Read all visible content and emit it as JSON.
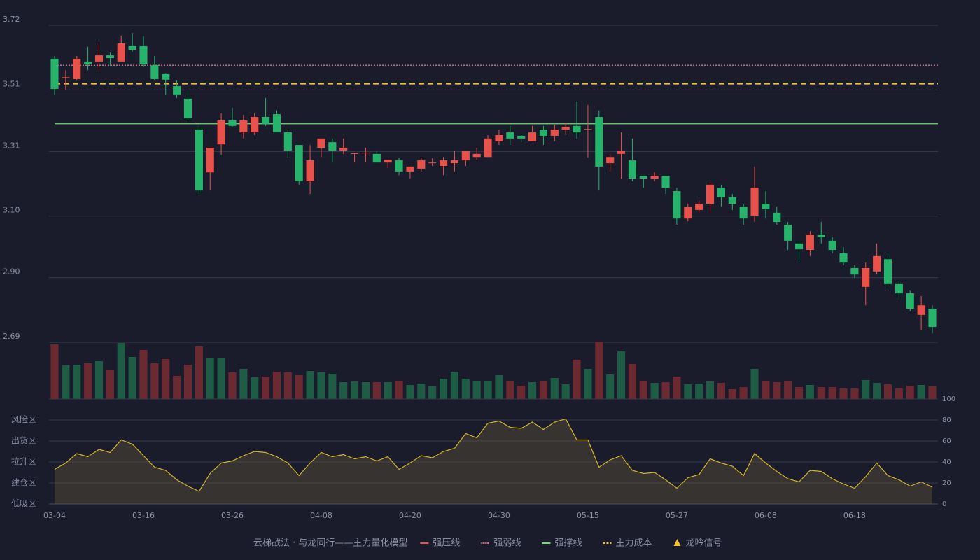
{
  "chart_data": [
    {
      "type": "candlestick",
      "categories": [
        "03-04",
        null,
        null,
        null,
        null,
        null,
        null,
        null,
        "03-16",
        null,
        null,
        null,
        null,
        null,
        null,
        null,
        "03-26",
        null,
        null,
        null,
        null,
        null,
        null,
        null,
        "04-08",
        null,
        null,
        null,
        null,
        null,
        null,
        null,
        "04-20",
        null,
        null,
        null,
        null,
        null,
        null,
        null,
        "04-30",
        null,
        null,
        null,
        null,
        null,
        null,
        null,
        "05-15",
        null,
        null,
        null,
        null,
        null,
        null,
        null,
        "05-27",
        null,
        null,
        null,
        null,
        null,
        null,
        null,
        "06-08",
        null,
        null,
        null,
        null,
        null,
        null,
        null,
        "06-18",
        null,
        null,
        null,
        null,
        null,
        null,
        null
      ],
      "open": [
        3.611,
        3.548,
        3.545,
        3.602,
        3.602,
        3.622,
        3.602,
        3.652,
        3.652,
        3.59,
        3.561,
        3.522,
        3.481,
        3.381,
        3.242,
        3.333,
        3.411,
        3.372,
        3.372,
        3.422,
        3.431,
        3.372,
        3.331,
        3.213,
        3.322,
        3.34,
        3.313,
        3.302,
        3.304,
        3.302,
        3.274,
        3.281,
        3.245,
        3.254,
        3.272,
        3.263,
        3.272,
        3.281,
        3.292,
        3.292,
        3.343,
        3.372,
        3.361,
        3.343,
        3.381,
        3.361,
        3.381,
        3.393,
        3.381,
        3.422,
        3.272,
        3.302,
        3.281,
        3.231,
        3.222,
        3.231,
        3.181,
        3.092,
        3.12,
        3.14,
        3.192,
        3.161,
        3.131,
        3.101,
        3.14,
        3.111,
        3.072,
        3.011,
        2.99,
        3.04,
        3.02,
        2.979,
        2.931,
        2.87,
        2.92,
        2.96,
        2.879,
        2.849,
        2.779,
        2.799
      ],
      "high": [
        3.62,
        3.574,
        3.62,
        3.65,
        3.661,
        3.631,
        3.686,
        3.695,
        3.684,
        3.62,
        3.563,
        3.54,
        3.511,
        3.393,
        3.322,
        3.434,
        3.452,
        3.429,
        3.434,
        3.484,
        3.443,
        3.381,
        3.331,
        3.331,
        3.352,
        3.352,
        3.352,
        3.304,
        3.322,
        3.311,
        3.283,
        3.29,
        3.261,
        3.29,
        3.288,
        3.292,
        3.311,
        3.311,
        3.322,
        3.363,
        3.381,
        3.393,
        3.363,
        3.393,
        3.393,
        3.397,
        3.402,
        3.472,
        3.461,
        3.443,
        3.302,
        3.372,
        3.352,
        3.231,
        3.242,
        3.231,
        3.192,
        3.14,
        3.151,
        3.211,
        3.202,
        3.172,
        3.14,
        3.261,
        3.181,
        3.131,
        3.081,
        3.02,
        3.051,
        3.081,
        3.031,
        2.999,
        2.94,
        2.949,
        3.011,
        2.979,
        2.89,
        2.858,
        2.84,
        2.81
      ],
      "low": [
        3.493,
        3.511,
        3.54,
        3.574,
        3.574,
        3.586,
        3.602,
        3.634,
        3.584,
        3.54,
        3.493,
        3.484,
        3.411,
        3.172,
        3.183,
        3.299,
        3.39,
        3.352,
        3.363,
        3.393,
        3.372,
        3.29,
        3.202,
        3.172,
        3.292,
        3.274,
        3.302,
        3.274,
        3.274,
        3.274,
        3.256,
        3.233,
        3.222,
        3.245,
        3.263,
        3.233,
        3.245,
        3.263,
        3.283,
        3.292,
        3.331,
        3.331,
        3.34,
        3.343,
        3.331,
        3.343,
        3.363,
        3.352,
        3.29,
        3.183,
        3.245,
        3.222,
        3.213,
        3.192,
        3.213,
        3.172,
        3.072,
        3.083,
        3.111,
        3.111,
        3.131,
        3.12,
        3.072,
        3.081,
        3.092,
        3.072,
        2.99,
        2.949,
        2.97,
        3.011,
        2.979,
        2.94,
        2.899,
        2.81,
        2.91,
        2.87,
        2.829,
        2.79,
        2.729,
        2.719
      ],
      "close": [
        3.513,
        3.551,
        3.611,
        3.593,
        3.622,
        3.613,
        3.661,
        3.64,
        3.593,
        3.545,
        3.543,
        3.493,
        3.418,
        3.183,
        3.322,
        3.411,
        3.393,
        3.411,
        3.422,
        3.399,
        3.372,
        3.313,
        3.213,
        3.281,
        3.352,
        3.313,
        3.322,
        3.304,
        3.306,
        3.274,
        3.283,
        3.245,
        3.261,
        3.281,
        3.274,
        3.281,
        3.281,
        3.311,
        3.302,
        3.352,
        3.363,
        3.352,
        3.352,
        3.372,
        3.361,
        3.381,
        3.39,
        3.372,
        3.383,
        3.261,
        3.292,
        3.311,
        3.222,
        3.222,
        3.231,
        3.192,
        3.092,
        3.129,
        3.14,
        3.202,
        3.161,
        3.14,
        3.092,
        3.192,
        3.122,
        3.081,
        3.02,
        2.992,
        3.04,
        3.031,
        2.99,
        2.949,
        2.91,
        2.931,
        2.97,
        2.879,
        2.849,
        2.799,
        2.81,
        2.74
      ],
      "up_color": "#e8524a",
      "down_color": "#26b36b",
      "ylim": [
        2.69,
        3.72
      ],
      "yticks": [
        {
          "value": 2.69,
          "label": "2.69"
        },
        {
          "value": 2.9,
          "label": "2.90"
        },
        {
          "value": 3.1,
          "label": "3.10"
        },
        3.31,
        3.51,
        3.72
      ],
      "grid": true,
      "title": "云梯战法 · 与龙同行——主力量化模型",
      "series": [
        {
          "name": "强压线",
          "color": "#e8524a",
          "style": "solid"
        },
        {
          "name": "强弱线",
          "color": "#f08a9a",
          "style": "dotted",
          "level": 3.59
        },
        {
          "name": "强撑线",
          "color": "#6ee06e",
          "style": "solid",
          "level": 3.4
        },
        {
          "name": "主力成本",
          "color": "#f2c230",
          "style": "dashed",
          "level": 3.53
        },
        {
          "name": "龙吟信号",
          "color": "#f2c230",
          "style": "triangle"
        }
      ]
    },
    {
      "type": "bar",
      "values": [
        78,
        48,
        49,
        51,
        54,
        42,
        80,
        60,
        70,
        51,
        57,
        33,
        49,
        75,
        58,
        58,
        38,
        43,
        31,
        32,
        39,
        38,
        34,
        40,
        38,
        36,
        24,
        25,
        24,
        24,
        24,
        26,
        20,
        22,
        18,
        29,
        39,
        29,
        26,
        26,
        34,
        26,
        19,
        24,
        26,
        30,
        21,
        56,
        43,
        82,
        35,
        68,
        50,
        26,
        23,
        24,
        32,
        21,
        22,
        25,
        23,
        14,
        17,
        43,
        26,
        24,
        26,
        17,
        20,
        17,
        17,
        15,
        15,
        27,
        23,
        21,
        15,
        19,
        20,
        18
      ],
      "up": [
        1,
        0,
        0,
        1,
        0,
        1,
        0,
        0,
        1,
        1,
        1,
        1,
        1,
        1,
        0,
        0,
        1,
        0,
        0,
        1,
        1,
        1,
        1,
        0,
        0,
        0,
        0,
        0,
        0,
        1,
        0,
        1,
        0,
        0,
        0,
        0,
        0,
        0,
        0,
        0,
        0,
        1,
        1,
        0,
        1,
        0,
        0,
        1,
        0,
        1,
        0,
        0,
        1,
        1,
        0,
        1,
        1,
        0,
        0,
        0,
        1,
        1,
        1,
        0,
        1,
        1,
        1,
        1,
        0,
        1,
        1,
        1,
        1,
        0,
        0,
        1,
        1,
        1,
        0,
        1
      ],
      "up_color": "#6b2a32",
      "down_color": "#1f5c45"
    },
    {
      "type": "line",
      "values": [
        33,
        39,
        48,
        45,
        52,
        49,
        61,
        57,
        46,
        35,
        32,
        23,
        17,
        12,
        29,
        39,
        41,
        46,
        50,
        49,
        45,
        39,
        27,
        39,
        49,
        45,
        47,
        43,
        45,
        41,
        45,
        33,
        39,
        46,
        44,
        50,
        53,
        67,
        63,
        77,
        79,
        73,
        72,
        78,
        71,
        78,
        81,
        61,
        61,
        35,
        42,
        46,
        32,
        29,
        30,
        23,
        15,
        25,
        28,
        43,
        39,
        36,
        27,
        48,
        39,
        31,
        24,
        21,
        32,
        31,
        24,
        19,
        15,
        26,
        39,
        27,
        23,
        17,
        21,
        16
      ],
      "color": "#d4b52a",
      "ylim": [
        0,
        100
      ],
      "yticks": [
        0,
        20,
        40,
        60,
        80,
        100
      ],
      "ytick_colors": [
        "#e8524a",
        "#f0a030",
        "#4a8cf0",
        "#e050e0",
        "#f0a030",
        "#40e060"
      ],
      "zones": [
        {
          "label": "风险区",
          "value": 80,
          "color": "#f0a030"
        },
        {
          "label": "出货区",
          "value": 60,
          "color": "#e050e0"
        },
        {
          "label": "拉升区",
          "value": 40,
          "color": "#4a8cf0"
        },
        {
          "label": "建仓区",
          "value": 20,
          "color": "#f06040"
        },
        {
          "label": "低吸区",
          "value": 0,
          "color": "#e8524a"
        }
      ]
    }
  ]
}
